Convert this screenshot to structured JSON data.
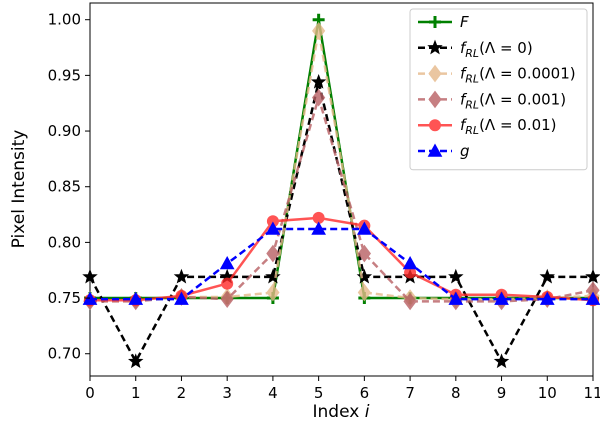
{
  "chart_data": {
    "type": "line",
    "xlabel": "Index",
    "xlabel_var": "i",
    "ylabel": "Pixel Intensity",
    "xlim": [
      0,
      11
    ],
    "ylim": [
      0.68,
      1.015
    ],
    "grid": false,
    "legend_placement": "top-right",
    "x_ticks": [
      "0",
      "1",
      "2",
      "3",
      "4",
      "5",
      "6",
      "7",
      "8",
      "9",
      "10",
      "11"
    ],
    "y_ticks": [
      "0.70",
      "0.75",
      "0.80",
      "0.85",
      "0.90",
      "0.95",
      "1.00"
    ],
    "x": [
      0,
      1,
      2,
      3,
      4,
      5,
      6,
      7,
      8,
      9,
      10,
      11
    ],
    "series": [
      {
        "name": "F",
        "legend": {
          "main": "F",
          "italic": true
        },
        "color": "#008000",
        "dash": "solid",
        "marker": "plus",
        "values": [
          0.75,
          0.75,
          0.75,
          0.75,
          0.75,
          1.0,
          0.75,
          0.75,
          0.75,
          0.75,
          0.75,
          0.75
        ]
      },
      {
        "name": "f_RL(Λ=0)",
        "legend": {
          "main": "f",
          "sub": "RL",
          "arg": "(Λ = 0)"
        },
        "color": "#000000",
        "dash": "dashed",
        "marker": "star",
        "values": [
          0.769,
          0.693,
          0.769,
          0.769,
          0.769,
          0.944,
          0.769,
          0.769,
          0.769,
          0.693,
          0.769,
          0.769
        ]
      },
      {
        "name": "f_RL(Λ=0.0001)",
        "legend": {
          "main": "f",
          "sub": "RL",
          "arg": "(Λ = 0.0001)"
        },
        "color": "#e6b98a",
        "dash": "dashed",
        "marker": "diamond",
        "values": [
          0.748,
          0.748,
          0.751,
          0.751,
          0.755,
          0.99,
          0.755,
          0.75,
          0.749,
          0.749,
          0.75,
          0.752
        ]
      },
      {
        "name": "f_RL(Λ=0.001)",
        "legend": {
          "main": "f",
          "sub": "RL",
          "arg": "(Λ = 0.001)"
        },
        "color": "#b86064",
        "dash": "dashed",
        "marker": "diamond",
        "values": [
          0.747,
          0.747,
          0.751,
          0.749,
          0.79,
          0.93,
          0.79,
          0.747,
          0.747,
          0.747,
          0.749,
          0.757
        ]
      },
      {
        "name": "f_RL(Λ=0.01)",
        "legend": {
          "main": "f",
          "sub": "RL",
          "arg": "(Λ = 0.01)"
        },
        "color": "#ff2a2a",
        "dash": "solid",
        "marker": "circle",
        "values": [
          0.748,
          0.748,
          0.752,
          0.763,
          0.819,
          0.822,
          0.815,
          0.773,
          0.753,
          0.753,
          0.751,
          0.748
        ]
      },
      {
        "name": "g",
        "legend": {
          "main": "g",
          "italic": true
        },
        "color": "#0000ff",
        "dash": "dashed",
        "marker": "triangle",
        "values": [
          0.749,
          0.749,
          0.749,
          0.781,
          0.812,
          0.812,
          0.812,
          0.781,
          0.749,
          0.749,
          0.749,
          0.749
        ]
      }
    ]
  }
}
